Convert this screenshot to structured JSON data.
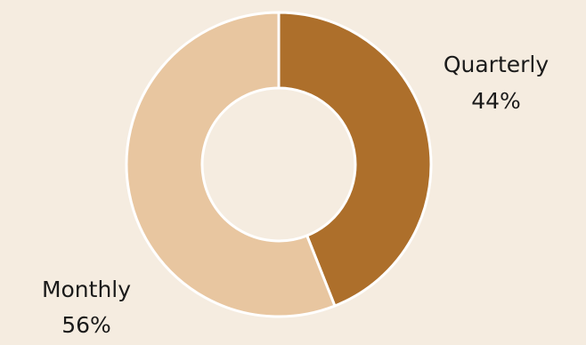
{
  "chart_data": {
    "type": "pie",
    "variant": "donut",
    "slices": [
      {
        "label": "Quarterly",
        "value": 44,
        "percent_label": "44%",
        "color": "#ad6f2b"
      },
      {
        "label": "Monthly",
        "value": 56,
        "percent_label": "56%",
        "color": "#e8c6a0"
      }
    ],
    "title": "",
    "legend": "none",
    "background": "#f5ece0",
    "slice_border_color": "#ffffff"
  }
}
